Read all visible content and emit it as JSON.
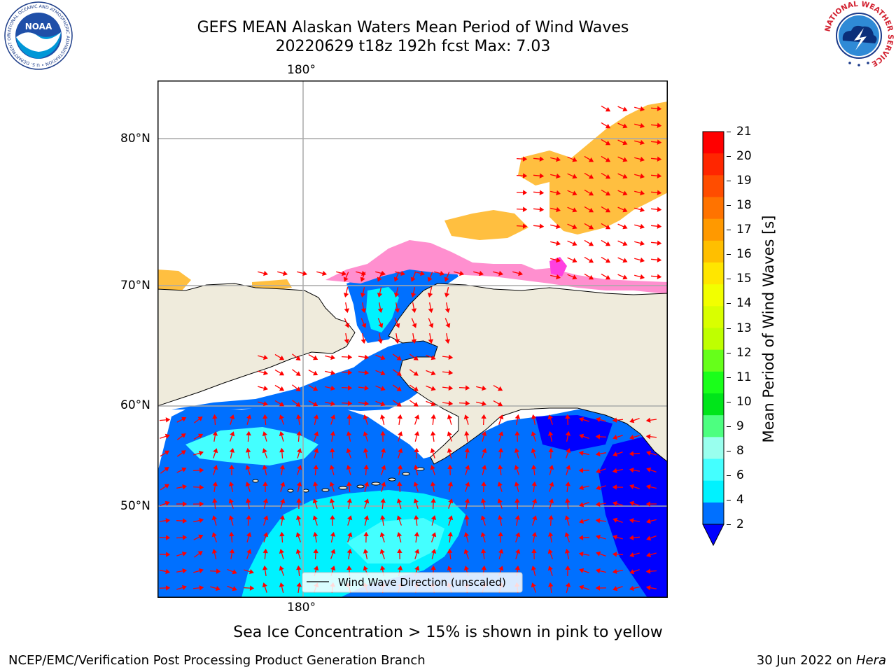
{
  "header": {
    "title_line1": "GEFS MEAN Alaskan Waters Mean Period of Wind Waves",
    "title_line2": "20220629 t18z 192h fcst   Max: 7.03"
  },
  "logos": {
    "noaa": {
      "center_text": "NOAA",
      "ring_text": "NATIONAL OCEANIC AND ATMOSPHERIC ADMINISTRATION • U.S. DEPARTMENT OF COMMERCE"
    },
    "nws": {
      "ring_text": "NATIONAL WEATHER SERVICE"
    }
  },
  "map": {
    "lon_labels": [
      "180°",
      "180°"
    ],
    "lat_labels": [
      "80°N",
      "70°N",
      "60°N",
      "50°N"
    ],
    "legend_text": "Wind Wave Direction (unscaled)"
  },
  "colorbar": {
    "label": "Mean Period of Wind Waves [s]",
    "ticks": [
      "21",
      "20",
      "19",
      "18",
      "17",
      "16",
      "15",
      "14",
      "13",
      "12",
      "11",
      "10",
      "9",
      "8",
      "6",
      "4",
      "2"
    ],
    "colors": [
      "#ff0000",
      "#ff2600",
      "#ff4d00",
      "#ff7300",
      "#ff9900",
      "#ffbf00",
      "#ffe600",
      "#f2ff00",
      "#d9ff00",
      "#bfff00",
      "#66ff1a",
      "#1aff1a",
      "#00e51a",
      "#4dff80",
      "#99ffee",
      "#44ffff",
      "#00f2ff",
      "#0070ff"
    ],
    "under_color": "#0000ff"
  },
  "caption": "Sea Ice Concentration > 15% is shown in pink to yellow",
  "footer": {
    "left": "NCEP/EMC/Verification Post Processing Product Generation Branch",
    "date": "30 Jun 2022 on ",
    "machine": "Hera"
  }
}
